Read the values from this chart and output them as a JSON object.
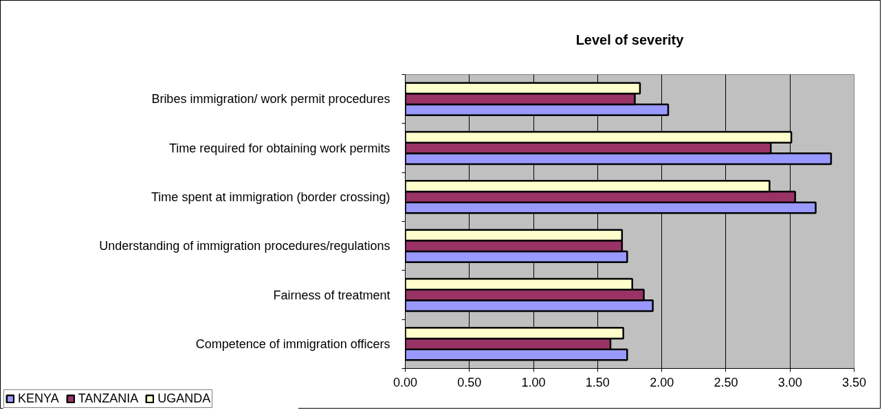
{
  "chart_data": {
    "type": "bar",
    "orientation": "horizontal",
    "title": "Level of severity",
    "categories": [
      "Bribes immigration/ work permit procedures",
      "Time required for obtaining work permits",
      "Time spent at immigration (border crossing)",
      "Understanding of immigration procedures/regulations",
      "Fairness of treatment",
      "Competence of immigration officers"
    ],
    "series": [
      {
        "name": "KENYA",
        "color": "#9999ff",
        "values": [
          2.05,
          3.32,
          3.2,
          1.73,
          1.93,
          1.73
        ]
      },
      {
        "name": "TANZANIA",
        "color": "#993366",
        "values": [
          1.79,
          2.85,
          3.04,
          1.69,
          1.86,
          1.6
        ]
      },
      {
        "name": "UGANDA",
        "color": "#ffffcc",
        "values": [
          1.83,
          3.01,
          2.84,
          1.69,
          1.77,
          1.7
        ]
      }
    ],
    "xlim": [
      0,
      3.5
    ],
    "xticks": [
      {
        "value": 0,
        "label": "0.00"
      },
      {
        "value": 0.5,
        "label": "0.50"
      },
      {
        "value": 1,
        "label": "1.00"
      },
      {
        "value": 1.5,
        "label": "1.50"
      },
      {
        "value": 2,
        "label": "2.00"
      },
      {
        "value": 2.5,
        "label": "2.50"
      },
      {
        "value": 3,
        "label": "3.00"
      },
      {
        "value": 3.5,
        "label": "3.50"
      }
    ],
    "grid": "x",
    "legend": "bottom left"
  }
}
